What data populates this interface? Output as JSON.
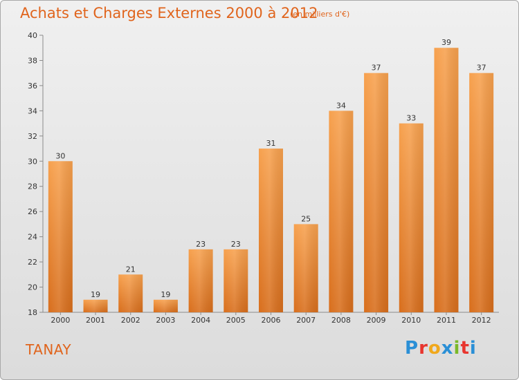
{
  "header": {
    "title": "Achats et Charges Externes 2000 à 2012",
    "subtitle": "(en milliers d'€)"
  },
  "footer": {
    "place": "TANAY",
    "logo_letters": [
      {
        "ch": "P",
        "color": "#2a8fd6"
      },
      {
        "ch": "r",
        "color": "#e8352e"
      },
      {
        "ch": "o",
        "color": "#f0a81c"
      },
      {
        "ch": "x",
        "color": "#2a8fd6"
      },
      {
        "ch": "i",
        "color": "#7ab829"
      },
      {
        "ch": "t",
        "color": "#e8352e"
      },
      {
        "ch": "i",
        "color": "#2a8fd6"
      }
    ]
  },
  "chart_data": {
    "type": "bar",
    "title": "Achats et Charges Externes 2000 à 2012",
    "subtitle": "(en milliers d'€)",
    "categories": [
      "2000",
      "2001",
      "2002",
      "2003",
      "2004",
      "2005",
      "2006",
      "2007",
      "2008",
      "2009",
      "2010",
      "2011",
      "2012"
    ],
    "values": [
      30,
      19,
      21,
      19,
      23,
      23,
      31,
      25,
      34,
      37,
      33,
      39,
      37
    ],
    "ylim": [
      18,
      40
    ],
    "yticks": [
      18,
      20,
      22,
      24,
      26,
      28,
      30,
      32,
      34,
      36,
      38,
      40
    ],
    "grid": false,
    "bar_color_top": "#f7a14e",
    "bar_color_bottom": "#d86e1c",
    "xlabel": "",
    "ylabel": ""
  }
}
